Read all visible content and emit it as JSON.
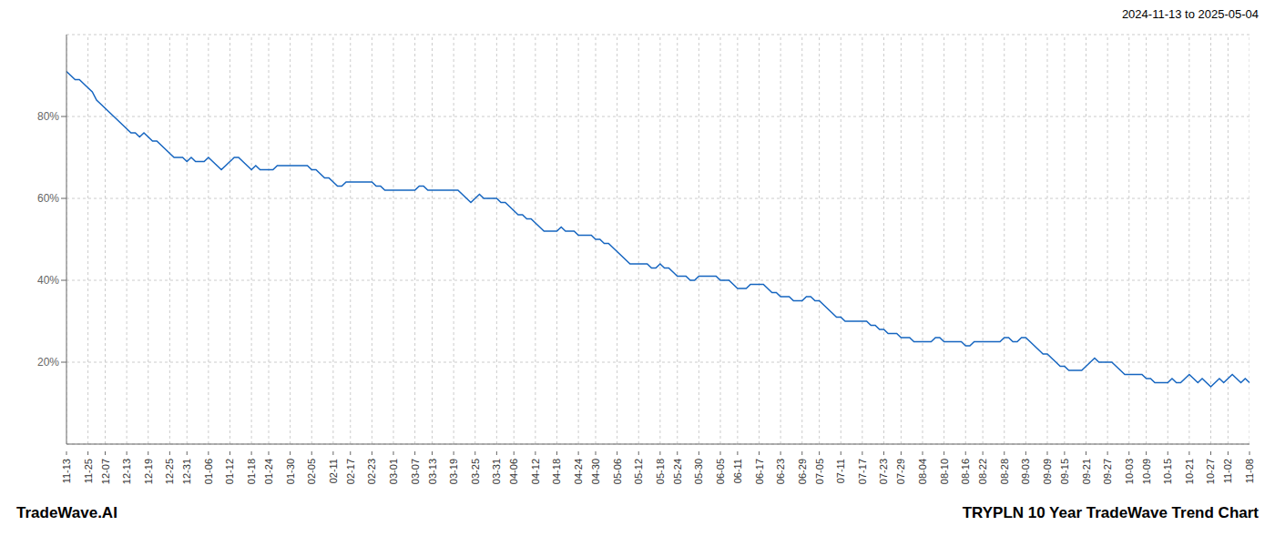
{
  "chart_data": {
    "type": "line",
    "title": "TRYPLN 10 Year TradeWave Trend Chart",
    "subtitle": "2024-11-13 to 2025-05-04",
    "annotations": [
      "TradeWave.AI"
    ],
    "color": "#1565c0",
    "grid": true,
    "ylim": [
      0,
      100
    ],
    "yticks": [
      {
        "value": 20,
        "label": "20%"
      },
      {
        "value": 40,
        "label": "40%"
      },
      {
        "value": 60,
        "label": "60%"
      },
      {
        "value": 80,
        "label": "80%"
      }
    ],
    "categories": [
      "11-13",
      null,
      null,
      null,
      null,
      "11-25",
      null,
      null,
      null,
      "12-07",
      null,
      null,
      null,
      null,
      "12-13",
      null,
      null,
      null,
      null,
      "12-19",
      null,
      null,
      null,
      null,
      "12-25",
      null,
      null,
      null,
      "12-31",
      null,
      null,
      null,
      null,
      "01-06",
      null,
      null,
      null,
      null,
      "01-12",
      null,
      null,
      null,
      null,
      "01-18",
      null,
      null,
      null,
      "01-24",
      null,
      null,
      null,
      null,
      "01-30",
      null,
      null,
      null,
      null,
      "02-05",
      null,
      null,
      null,
      null,
      "02-11",
      null,
      null,
      null,
      "02-17",
      null,
      null,
      null,
      null,
      "02-23",
      null,
      null,
      null,
      null,
      "03-01",
      null,
      null,
      null,
      null,
      "03-07",
      null,
      null,
      null,
      "03-13",
      null,
      null,
      null,
      null,
      "03-19",
      null,
      null,
      null,
      null,
      "03-25",
      null,
      null,
      null,
      null,
      "03-31",
      null,
      null,
      null,
      "04-06",
      null,
      null,
      null,
      null,
      "04-12",
      null,
      null,
      null,
      null,
      "04-18",
      null,
      null,
      null,
      null,
      "04-24",
      null,
      null,
      null,
      "04-30",
      null,
      null,
      null,
      null,
      "05-06",
      null,
      null,
      null,
      null,
      "05-12",
      null,
      null,
      null,
      null,
      "05-18",
      null,
      null,
      null,
      "05-24",
      null,
      null,
      null,
      null,
      "05-30",
      null,
      null,
      null,
      null,
      "06-05",
      null,
      null,
      null,
      "06-11",
      null,
      null,
      null,
      null,
      "06-17",
      null,
      null,
      null,
      null,
      "06-23",
      null,
      null,
      null,
      null,
      "06-29",
      null,
      null,
      null,
      "07-05",
      null,
      null,
      null,
      null,
      "07-11",
      null,
      null,
      null,
      null,
      "07-17",
      null,
      null,
      null,
      null,
      "07-23",
      null,
      null,
      null,
      "07-29",
      null,
      null,
      null,
      null,
      "08-04",
      null,
      null,
      null,
      null,
      "08-10",
      null,
      null,
      null,
      null,
      "08-16",
      null,
      null,
      null,
      "08-22",
      null,
      null,
      null,
      null,
      "08-28",
      null,
      null,
      null,
      null,
      "09-03",
      null,
      null,
      null,
      null,
      "09-09",
      null,
      null,
      null,
      "09-15",
      null,
      null,
      null,
      null,
      "09-21",
      null,
      null,
      null,
      null,
      "09-27",
      null,
      null,
      null,
      null,
      "10-03",
      null,
      null,
      null,
      "10-09",
      null,
      null,
      null,
      null,
      "10-15",
      null,
      null,
      null,
      null,
      "10-21",
      null,
      null,
      null,
      null,
      "10-27",
      null,
      null,
      null,
      "11-02",
      null,
      null,
      null,
      null,
      "11-08"
    ],
    "values": [
      91,
      90,
      89,
      89,
      88,
      87,
      86,
      84,
      83,
      82,
      81,
      80,
      79,
      78,
      77,
      76,
      76,
      75,
      76,
      75,
      74,
      74,
      73,
      72,
      71,
      70,
      70,
      70,
      69,
      70,
      69,
      69,
      69,
      70,
      69,
      68,
      67,
      68,
      69,
      70,
      70,
      69,
      68,
      67,
      68,
      67,
      67,
      67,
      67,
      68,
      68,
      68,
      68,
      68,
      68,
      68,
      68,
      67,
      67,
      66,
      65,
      65,
      64,
      63,
      63,
      64,
      64,
      64,
      64,
      64,
      64,
      64,
      63,
      63,
      62,
      62,
      62,
      62,
      62,
      62,
      62,
      62,
      63,
      63,
      62,
      62,
      62,
      62,
      62,
      62,
      62,
      62,
      61,
      60,
      59,
      60,
      61,
      60,
      60,
      60,
      60,
      59,
      59,
      58,
      57,
      56,
      56,
      55,
      55,
      54,
      53,
      52,
      52,
      52,
      52,
      53,
      52,
      52,
      52,
      51,
      51,
      51,
      51,
      50,
      50,
      49,
      49,
      48,
      47,
      46,
      45,
      44,
      44,
      44,
      44,
      44,
      43,
      43,
      44,
      43,
      43,
      42,
      41,
      41,
      41,
      40,
      40,
      41,
      41,
      41,
      41,
      41,
      40,
      40,
      40,
      39,
      38,
      38,
      38,
      39,
      39,
      39,
      39,
      38,
      37,
      37,
      36,
      36,
      36,
      35,
      35,
      35,
      36,
      36,
      35,
      35,
      34,
      33,
      32,
      31,
      31,
      30,
      30,
      30,
      30,
      30,
      30,
      29,
      29,
      28,
      28,
      27,
      27,
      27,
      26,
      26,
      26,
      25,
      25,
      25,
      25,
      25,
      26,
      26,
      25,
      25,
      25,
      25,
      25,
      24,
      24,
      25,
      25,
      25,
      25,
      25,
      25,
      25,
      26,
      26,
      25,
      25,
      26,
      26,
      25,
      24,
      23,
      22,
      22,
      21,
      20,
      19,
      19,
      18,
      18,
      18,
      18,
      19,
      20,
      21,
      20,
      20,
      20,
      20,
      19,
      18,
      17,
      17,
      17,
      17,
      17,
      16,
      16,
      15,
      15,
      15,
      15,
      16,
      15,
      15,
      16,
      17,
      16,
      15,
      16,
      15,
      14,
      15,
      16,
      15,
      16,
      17,
      16,
      15,
      16,
      15
    ]
  }
}
